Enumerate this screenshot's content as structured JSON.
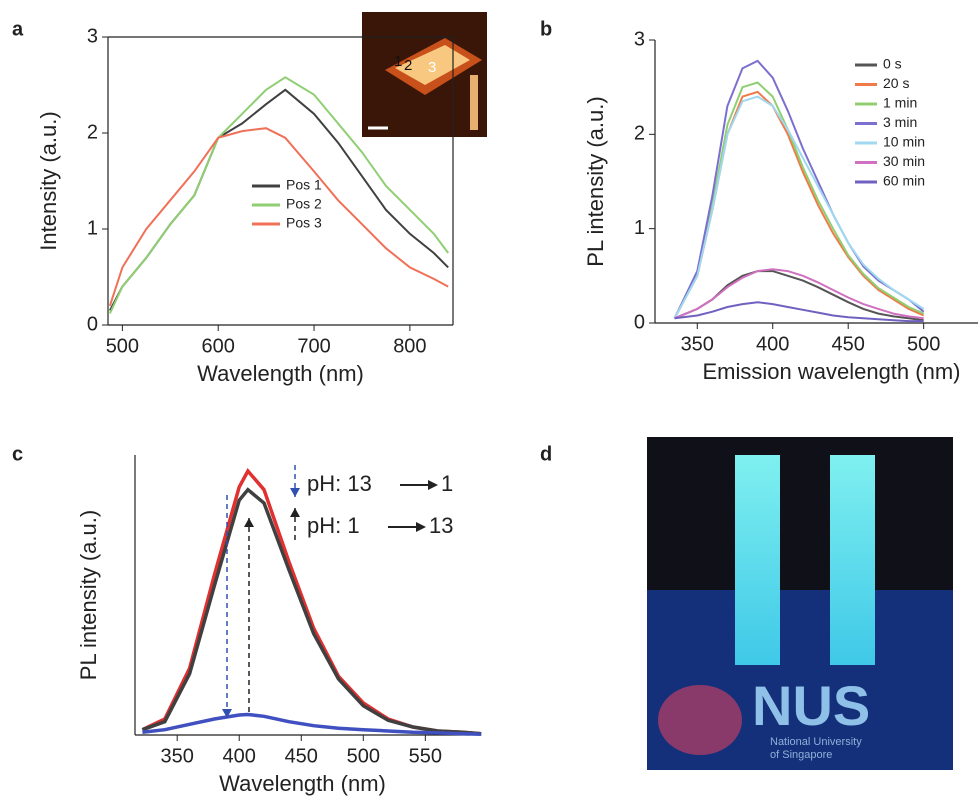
{
  "chart_data": [
    {
      "type": "line",
      "panel": "a",
      "x_label": "Wavelength (nm)",
      "y_label": "Intensity (a.u.)",
      "x": [
        487,
        500,
        525,
        550,
        575,
        600,
        625,
        650,
        670,
        700,
        725,
        750,
        775,
        800,
        825,
        840
      ],
      "series": [
        {
          "name": "Pos 1",
          "color": "#404040",
          "values": [
            0.15,
            0.4,
            0.7,
            1.05,
            1.35,
            1.95,
            2.1,
            2.3,
            2.45,
            2.2,
            1.9,
            1.55,
            1.2,
            0.95,
            0.75,
            0.6
          ]
        },
        {
          "name": "Pos 2",
          "color": "#8fcf72",
          "values": [
            0.12,
            0.4,
            0.7,
            1.05,
            1.35,
            1.95,
            2.2,
            2.45,
            2.58,
            2.4,
            2.1,
            1.8,
            1.45,
            1.2,
            0.95,
            0.75
          ]
        },
        {
          "name": "Pos 3",
          "color": "#f07058",
          "values": [
            0.2,
            0.6,
            1.0,
            1.3,
            1.6,
            1.95,
            2.02,
            2.05,
            1.95,
            1.6,
            1.3,
            1.05,
            0.8,
            0.6,
            0.48,
            0.4
          ]
        }
      ],
      "xlim": [
        485,
        845
      ],
      "ylim": [
        0,
        3
      ],
      "xticks": [
        500,
        600,
        700,
        800
      ],
      "yticks": [
        0,
        1,
        2,
        3
      ],
      "inset_labels": [
        "1",
        "2",
        "3"
      ]
    },
    {
      "type": "line",
      "panel": "b",
      "x_label": "Emission wavelength (nm)",
      "y_label": "PL intensity (a.u.)",
      "x": [
        335,
        350,
        360,
        370,
        380,
        390,
        400,
        410,
        420,
        430,
        440,
        450,
        460,
        470,
        480,
        490,
        500
      ],
      "series": [
        {
          "name": "0 s",
          "color": "#555555",
          "values": [
            0.05,
            0.15,
            0.25,
            0.4,
            0.5,
            0.55,
            0.55,
            0.5,
            0.45,
            0.38,
            0.3,
            0.22,
            0.15,
            0.1,
            0.07,
            0.05,
            0.03
          ]
        },
        {
          "name": "20 s",
          "color": "#f07a4a",
          "values": [
            0.05,
            0.5,
            1.2,
            2.0,
            2.4,
            2.45,
            2.3,
            2.0,
            1.6,
            1.25,
            0.95,
            0.7,
            0.5,
            0.35,
            0.25,
            0.15,
            0.08
          ]
        },
        {
          "name": "1 min",
          "color": "#8fcf72",
          "values": [
            0.05,
            0.5,
            1.25,
            2.1,
            2.5,
            2.55,
            2.4,
            2.05,
            1.65,
            1.3,
            1.0,
            0.72,
            0.52,
            0.37,
            0.27,
            0.17,
            0.1
          ]
        },
        {
          "name": "3 min",
          "color": "#7b6fd0",
          "values": [
            0.05,
            0.55,
            1.35,
            2.3,
            2.7,
            2.78,
            2.6,
            2.25,
            1.85,
            1.5,
            1.15,
            0.85,
            0.6,
            0.45,
            0.35,
            0.25,
            0.12
          ]
        },
        {
          "name": "10 min",
          "color": "#9fd8f0",
          "values": [
            0.05,
            0.5,
            1.2,
            2.0,
            2.35,
            2.4,
            2.3,
            2.05,
            1.75,
            1.45,
            1.15,
            0.85,
            0.62,
            0.47,
            0.35,
            0.25,
            0.15
          ]
        },
        {
          "name": "30 min",
          "color": "#d070c0",
          "values": [
            0.05,
            0.15,
            0.25,
            0.38,
            0.48,
            0.55,
            0.57,
            0.55,
            0.5,
            0.43,
            0.35,
            0.27,
            0.2,
            0.15,
            0.1,
            0.07,
            0.05
          ]
        },
        {
          "name": "60 min",
          "color": "#7060c0",
          "values": [
            0.05,
            0.08,
            0.12,
            0.17,
            0.2,
            0.22,
            0.2,
            0.17,
            0.14,
            0.11,
            0.08,
            0.06,
            0.05,
            0.04,
            0.03,
            0.02,
            0.02
          ]
        }
      ],
      "xlim": [
        322,
        536
      ],
      "ylim": [
        0,
        3
      ],
      "xticks": [
        350,
        400,
        450,
        500
      ],
      "yticks": [
        0,
        1,
        2,
        3
      ]
    },
    {
      "type": "line",
      "panel": "c",
      "x_label": "Wavelength (nm)",
      "y_label": "PL intensity (a.u.)",
      "x": [
        322,
        340,
        360,
        380,
        400,
        407,
        420,
        440,
        460,
        480,
        500,
        520,
        540,
        560,
        580,
        595
      ],
      "series": [
        {
          "color": "#e03030",
          "values": [
            0.02,
            0.06,
            0.25,
            0.6,
            0.93,
            0.99,
            0.92,
            0.65,
            0.4,
            0.22,
            0.12,
            0.06,
            0.03,
            0.015,
            0.01,
            0.005
          ]
        },
        {
          "color": "#404040",
          "values": [
            0.02,
            0.05,
            0.23,
            0.56,
            0.88,
            0.92,
            0.87,
            0.62,
            0.38,
            0.21,
            0.11,
            0.055,
            0.03,
            0.015,
            0.01,
            0.005
          ]
        },
        {
          "color": "#4050c0",
          "values": [
            0.01,
            0.02,
            0.04,
            0.06,
            0.075,
            0.077,
            0.07,
            0.05,
            0.035,
            0.025,
            0.02,
            0.015,
            0.01,
            0.008,
            0.005,
            0.003
          ]
        }
      ],
      "xlim": [
        316,
        586
      ],
      "ylim": [
        0,
        1.05
      ],
      "xticks": [
        350,
        400,
        450,
        500,
        550
      ],
      "annotations": [
        "pH: 13",
        "1",
        "pH: 1",
        "13"
      ]
    }
  ],
  "photo": {
    "panel": "d",
    "texts": [
      "NUS",
      "National University",
      "of Singapore"
    ]
  }
}
